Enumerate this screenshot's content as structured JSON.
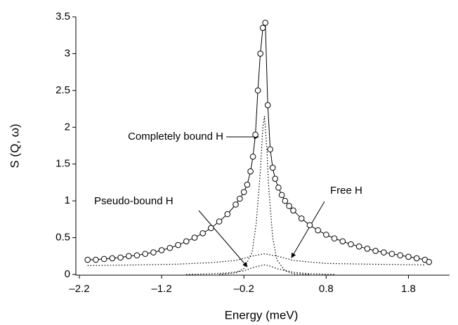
{
  "chart_data": {
    "type": "scatter-line",
    "xlabel": "Energy (meV)",
    "ylabel": "S (Q, ω)",
    "xlim": [
      -2.2,
      2.3
    ],
    "ylim": [
      0,
      3.5
    ],
    "xticks": [
      {
        "value": -2.2,
        "label": "–2.2"
      },
      {
        "value": -1.2,
        "label": "–1.2"
      },
      {
        "value": -0.2,
        "label": "–0.2"
      },
      0.8,
      1.8
    ],
    "yticks": [
      0,
      0.5,
      1,
      1.5,
      2,
      2.5,
      3,
      3.5
    ],
    "x": [
      -2.1,
      -2.0,
      -1.9,
      -1.8,
      -1.7,
      -1.6,
      -1.5,
      -1.4,
      -1.3,
      -1.2,
      -1.1,
      -1.0,
      -0.9,
      -0.8,
      -0.7,
      -0.6,
      -0.5,
      -0.4,
      -0.3,
      -0.25,
      -0.2,
      -0.16,
      -0.12,
      -0.09,
      -0.06,
      -0.03,
      0.0,
      0.03,
      0.06,
      0.09,
      0.12,
      0.15,
      0.18,
      0.22,
      0.26,
      0.3,
      0.35,
      0.4,
      0.5,
      0.6,
      0.7,
      0.8,
      0.9,
      1.0,
      1.1,
      1.2,
      1.3,
      1.4,
      1.5,
      1.6,
      1.7,
      1.8,
      1.9,
      2.0,
      2.05
    ],
    "values": [
      0.2,
      0.2,
      0.21,
      0.22,
      0.23,
      0.25,
      0.26,
      0.28,
      0.3,
      0.33,
      0.36,
      0.4,
      0.45,
      0.5,
      0.56,
      0.63,
      0.72,
      0.82,
      0.95,
      1.03,
      1.12,
      1.22,
      1.4,
      1.6,
      1.9,
      2.5,
      3.0,
      3.35,
      3.42,
      2.3,
      1.7,
      1.45,
      1.3,
      1.18,
      1.08,
      1.0,
      0.93,
      0.87,
      0.76,
      0.67,
      0.6,
      0.54,
      0.49,
      0.45,
      0.41,
      0.38,
      0.35,
      0.32,
      0.3,
      0.28,
      0.26,
      0.24,
      0.22,
      0.2,
      0.17
    ],
    "series": [
      {
        "name": "Completely bound H",
        "color": "#000000",
        "x": [
          -0.5,
          -0.3,
          -0.2,
          -0.1,
          -0.05,
          0,
          0.03,
          0.05,
          0.08,
          0.1,
          0.15,
          0.2,
          0.3,
          0.4,
          0.6
        ],
        "values": [
          0,
          0.02,
          0.08,
          0.3,
          0.7,
          1.4,
          2.0,
          2.15,
          1.7,
          1.2,
          0.5,
          0.2,
          0.05,
          0.01,
          0
        ]
      },
      {
        "name": "Pseudo-bound H",
        "color": "#000000",
        "x": [
          -0.9,
          -0.6,
          -0.4,
          -0.2,
          -0.1,
          0,
          0.05,
          0.1,
          0.2,
          0.4,
          0.6,
          0.9
        ],
        "values": [
          0,
          0.01,
          0.02,
          0.05,
          0.09,
          0.12,
          0.13,
          0.12,
          0.08,
          0.03,
          0.01,
          0
        ]
      },
      {
        "name": "Free H",
        "color": "#000000",
        "x": [
          -2.1,
          -1.5,
          -1.0,
          -0.6,
          -0.3,
          -0.1,
          0.05,
          0.2,
          0.4,
          0.8,
          1.3,
          2.0
        ],
        "values": [
          0.12,
          0.13,
          0.14,
          0.16,
          0.19,
          0.25,
          0.28,
          0.25,
          0.19,
          0.15,
          0.14,
          0.13
        ]
      }
    ]
  }
}
